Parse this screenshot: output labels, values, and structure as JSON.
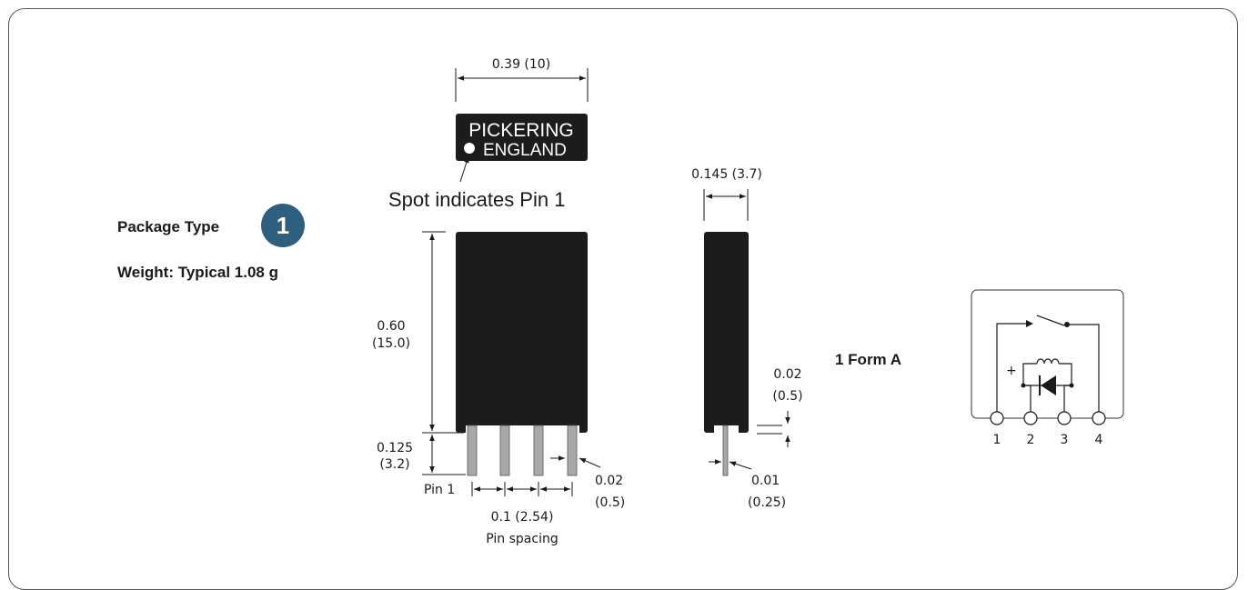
{
  "package": {
    "type_label": "Package Type",
    "type_number": "1",
    "weight": "Weight: Typical 1.08 g"
  },
  "top_view": {
    "width_dim": "0.39 (10)",
    "brand": "PICKERING",
    "origin": "ENGLAND",
    "spot_note": "Spot indicates Pin 1"
  },
  "front_view": {
    "height_in": "0.60",
    "height_mm": "(15.0)",
    "pin_len_in": "0.125",
    "pin_len_mm": "(3.2)",
    "pin1_label": "Pin 1",
    "pin_spacing_dim": "0.1 (2.54)",
    "pin_spacing_label": "Pin spacing",
    "pin_width_in": "0.02",
    "pin_width_mm": "(0.5)"
  },
  "side_view": {
    "depth_dim": "0.145 (3.7)",
    "standoff_in": "0.02",
    "standoff_mm": "(0.5)",
    "pin_thk_in": "0.01",
    "pin_thk_mm": "(0.25)"
  },
  "schematic": {
    "form_label": "1 Form A",
    "plus": "+",
    "pins": [
      "1",
      "2",
      "3",
      "4"
    ]
  },
  "colors": {
    "body": "#1c1c1c",
    "pin": "#a8a8a8",
    "badge": "#2e5f7e",
    "frame": "#555555"
  }
}
